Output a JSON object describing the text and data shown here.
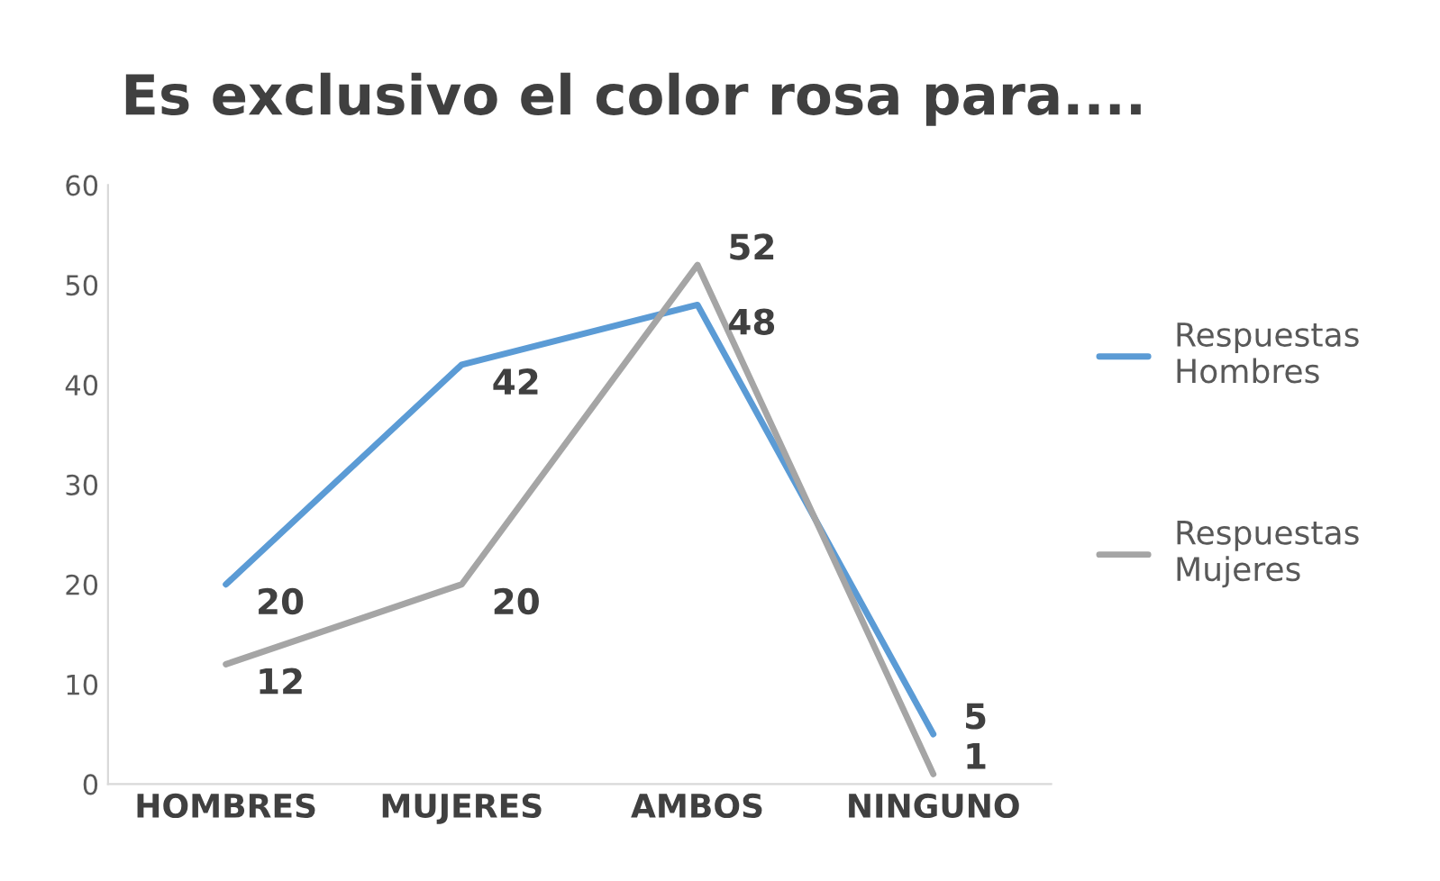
{
  "chart_data": {
    "type": "line",
    "title": "Es exclusivo el color rosa para....",
    "categories": [
      "HOMBRES",
      "MUJERES",
      "AMBOS",
      "NINGUNO"
    ],
    "series": [
      {
        "name": "Respuestas Hombres",
        "color": "#5b9bd5",
        "values": [
          20,
          42,
          48,
          5
        ]
      },
      {
        "name": "Respuestas Mujeres",
        "color": "#a5a5a5",
        "values": [
          12,
          20,
          52,
          1
        ]
      }
    ],
    "ylim": [
      0,
      60
    ],
    "yticks": [
      0,
      10,
      20,
      30,
      40,
      50,
      60
    ],
    "grid": false,
    "legend": "right",
    "data_labels": true,
    "marker": "none",
    "line_style": "solid"
  }
}
